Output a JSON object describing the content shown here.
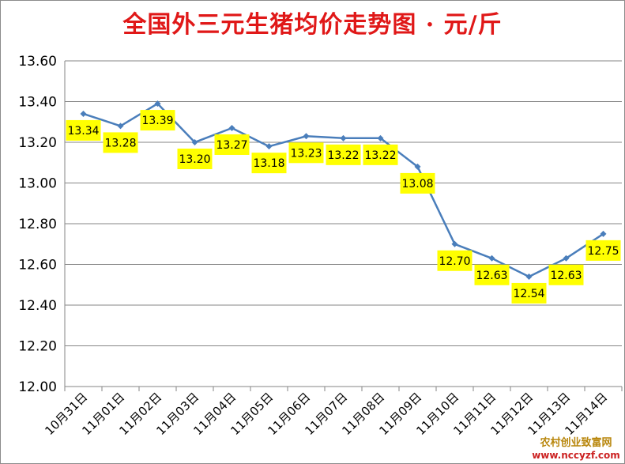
{
  "chart_data": {
    "type": "line",
    "title": "全国外三元生猪均价走势图 · 元/斤",
    "xlabel": "",
    "ylabel": "",
    "categories": [
      "10月31日",
      "11月01日",
      "11月02日",
      "11月03日",
      "11月04日",
      "11月05日",
      "11月06日",
      "11月07日",
      "11月08日",
      "11月09日",
      "11月10日",
      "11月11日",
      "11月12日",
      "11月13日",
      "11月14日"
    ],
    "series": [
      {
        "values": [
          13.34,
          13.28,
          13.39,
          13.2,
          13.27,
          13.18,
          13.23,
          13.22,
          13.22,
          13.08,
          12.7,
          12.63,
          12.54,
          12.63,
          12.75
        ],
        "labels": [
          "13.34",
          "13.28",
          "13.39",
          "13.20",
          "13.27",
          "13.18",
          "13.23",
          "13.22",
          "13.22",
          "13.08",
          "12.70",
          "12.63",
          "12.54",
          "12.63",
          "12.75"
        ]
      }
    ],
    "ylim": [
      12.0,
      13.6
    ],
    "yticks": [
      "12.00",
      "12.20",
      "12.40",
      "12.60",
      "12.80",
      "13.00",
      "13.20",
      "13.40",
      "13.60"
    ],
    "grid": true,
    "legend": "none",
    "line_color": "#4a7ebb",
    "label_bg_color": "#ffff00",
    "title_color": "#e01818"
  },
  "watermark": {
    "name": "农村创业致富网",
    "url": "www.nccyzf.com"
  }
}
